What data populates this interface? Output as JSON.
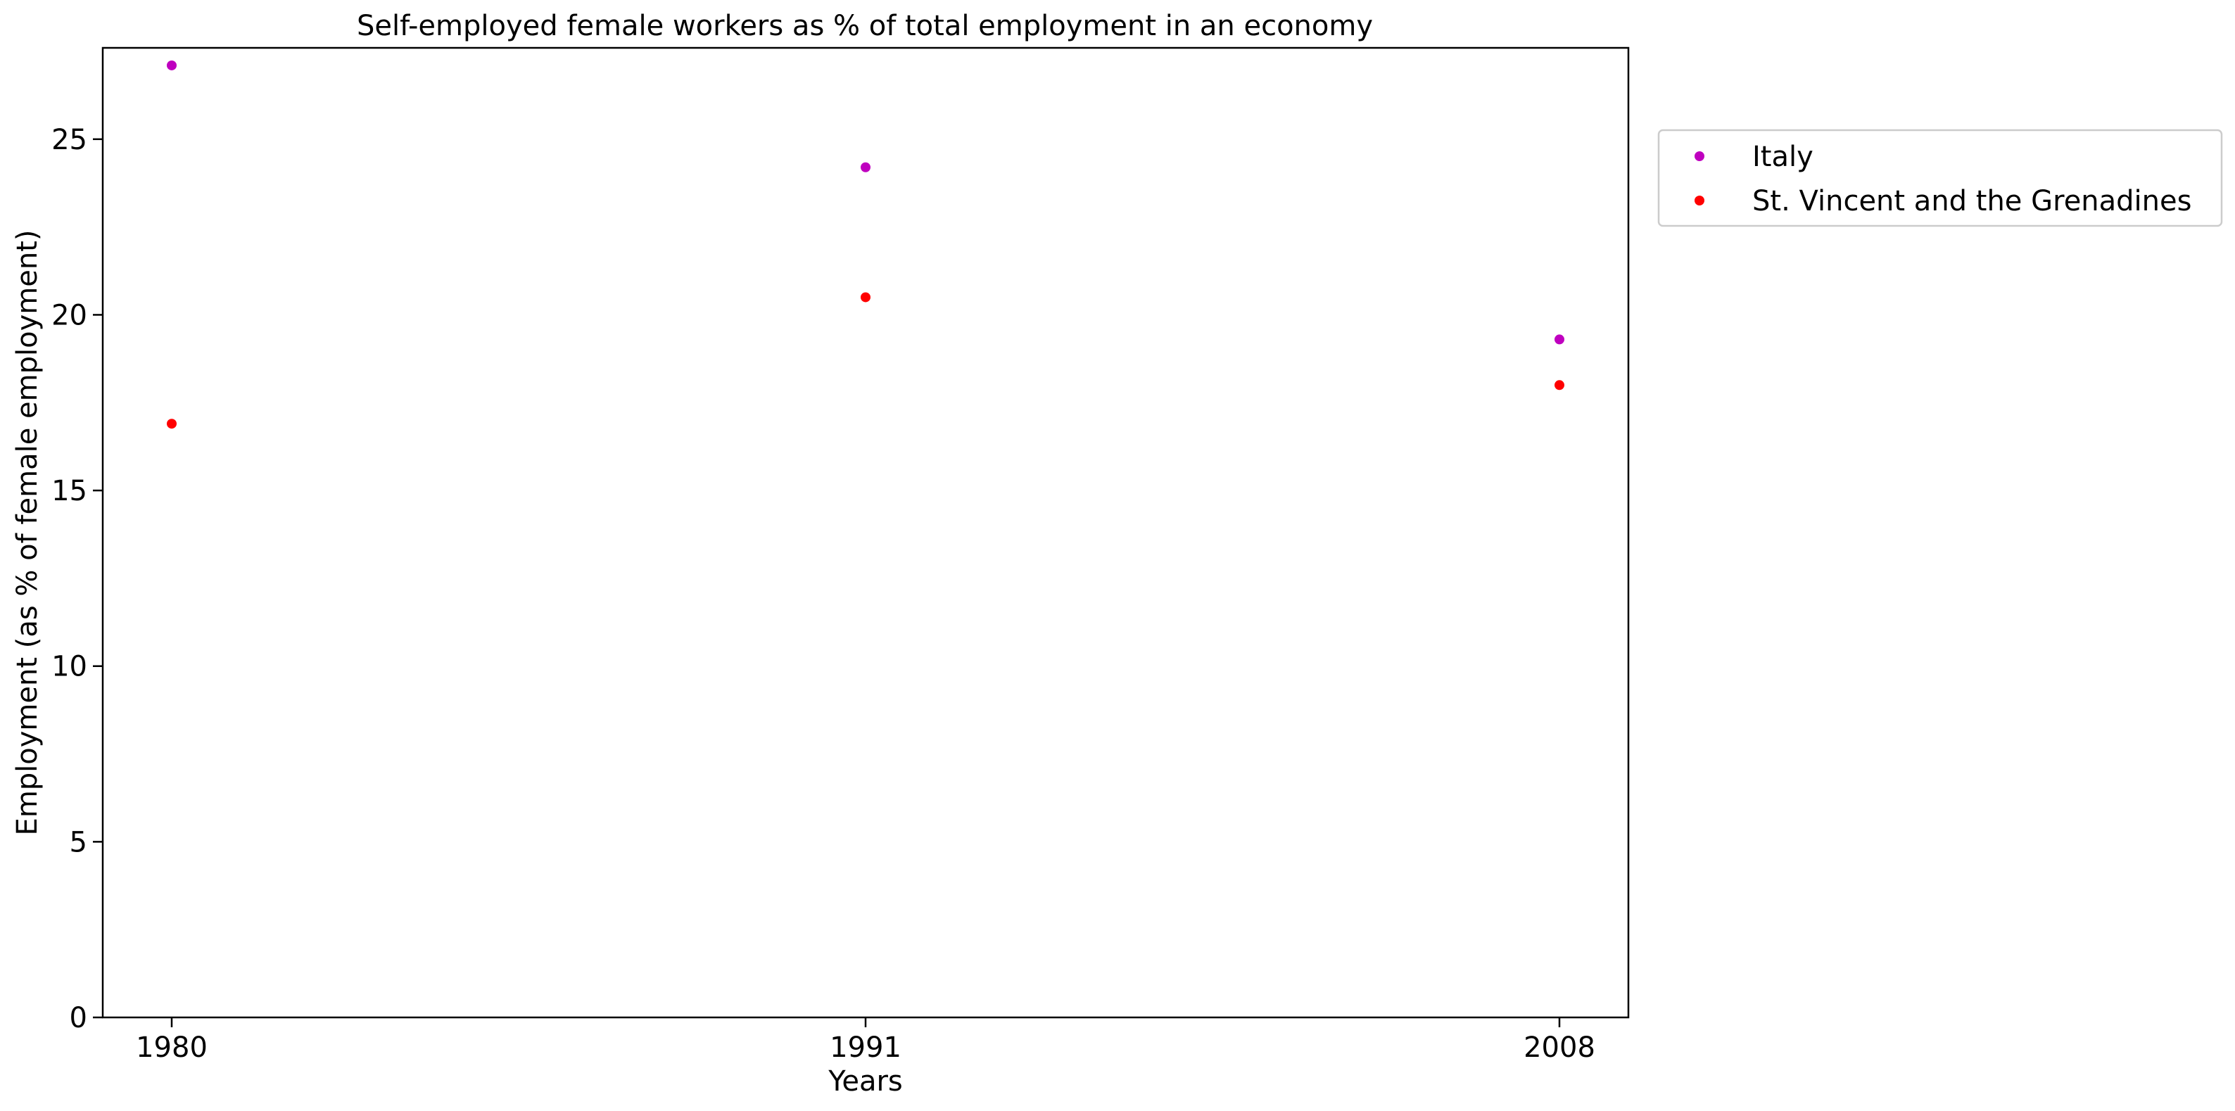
{
  "chart_data": {
    "type": "scatter",
    "title": "Self-employed female workers as % of total employment in an economy",
    "xlabel": "Years",
    "ylabel": "Employment (as % of female employment)",
    "categories": [
      "1980",
      "1991",
      "2008"
    ],
    "ylim": [
      0,
      27.6
    ],
    "yticks": [
      0,
      5,
      10,
      15,
      20,
      25
    ],
    "grid": false,
    "legend_position": "outside-right-top",
    "series": [
      {
        "name": "Italy",
        "color": "#bf00bf",
        "values": [
          27.1,
          24.2,
          19.3
        ]
      },
      {
        "name": "St. Vincent and the Grenadines",
        "color": "#ff0000",
        "values": [
          16.9,
          20.5,
          18.0
        ]
      }
    ]
  }
}
